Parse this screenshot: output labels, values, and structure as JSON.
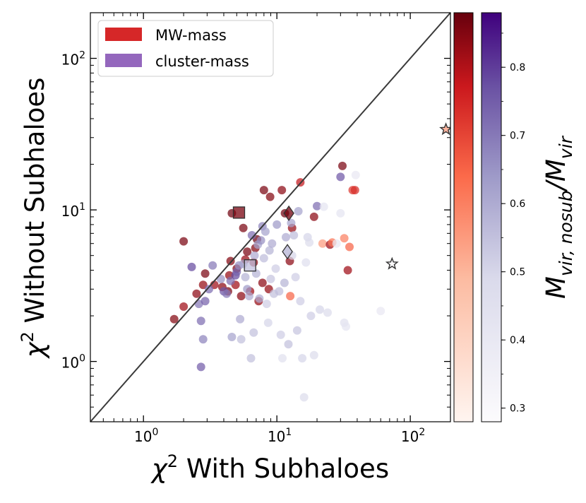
{
  "chart_data": {
    "type": "scatter",
    "title": "",
    "xlabel_base": "χ",
    "xlabel_sup": "2",
    "xlabel_rest": " With Subhaloes",
    "ylabel_base": "χ",
    "ylabel_sup": "2",
    "ylabel_rest": " Without Subhaloes",
    "xscale": "log",
    "yscale": "log",
    "xlim": [
      0.4,
      200
    ],
    "ylim": [
      0.4,
      200
    ],
    "x_ticks": [
      {
        "value": 1,
        "base": "10",
        "exp": "0"
      },
      {
        "value": 10,
        "base": "10",
        "exp": "1"
      },
      {
        "value": 100,
        "base": "10",
        "exp": "2"
      }
    ],
    "y_ticks": [
      {
        "value": 1,
        "base": "10",
        "exp": "0"
      },
      {
        "value": 10,
        "base": "10",
        "exp": "1"
      },
      {
        "value": 100,
        "base": "10",
        "exp": "2"
      }
    ],
    "one_to_one_line": true,
    "legend": {
      "position": "top-left",
      "entries": [
        {
          "label": "MW-mass",
          "color": "#d62728"
        },
        {
          "label": "cluster-mass",
          "color": "#9467bd"
        }
      ]
    },
    "colorbar": {
      "label_base": "M",
      "label_sub1": "vir, nosub",
      "label_slash": "/",
      "label_sub2": "vir",
      "range": [
        0.28,
        0.88
      ],
      "ticks": [
        "0.3",
        "0.4",
        "0.5",
        "0.6",
        "0.7",
        "0.8"
      ],
      "cmaps": [
        "Reds",
        "Purples"
      ]
    },
    "series": [
      {
        "name": "MW-mass",
        "color": "#8b2a33",
        "points": [
          {
            "x": 1.7,
            "y": 1.9,
            "c": 0.85
          },
          {
            "x": 2.0,
            "y": 2.3,
            "c": 0.82
          },
          {
            "x": 2.0,
            "y": 6.2,
            "c": 0.86
          },
          {
            "x": 2.5,
            "y": 2.8,
            "c": 0.84
          },
          {
            "x": 2.8,
            "y": 3.2,
            "c": 0.83
          },
          {
            "x": 2.9,
            "y": 3.8,
            "c": 0.86
          },
          {
            "x": 3.4,
            "y": 3.2,
            "c": 0.82
          },
          {
            "x": 3.9,
            "y": 3.1,
            "c": 0.84
          },
          {
            "x": 4.3,
            "y": 2.9,
            "c": 0.86
          },
          {
            "x": 4.4,
            "y": 3.7,
            "c": 0.83
          },
          {
            "x": 4.5,
            "y": 4.6,
            "c": 0.85
          },
          {
            "x": 4.6,
            "y": 9.5,
            "c": 0.87
          },
          {
            "x": 4.9,
            "y": 3.2,
            "c": 0.82
          },
          {
            "x": 5.0,
            "y": 4.1,
            "c": 0.85
          },
          {
            "x": 5.4,
            "y": 2.7,
            "c": 0.84
          },
          {
            "x": 5.6,
            "y": 7.6,
            "c": 0.86
          },
          {
            "x": 5.8,
            "y": 4.7,
            "c": 0.83
          },
          {
            "x": 6.0,
            "y": 5.3,
            "c": 0.86
          },
          {
            "x": 6.3,
            "y": 2.9,
            "c": 0.82
          },
          {
            "x": 6.7,
            "y": 4.5,
            "c": 0.84
          },
          {
            "x": 6.9,
            "y": 5.6,
            "c": 0.85
          },
          {
            "x": 7.1,
            "y": 6.4,
            "c": 0.87
          },
          {
            "x": 7.3,
            "y": 2.5,
            "c": 0.83
          },
          {
            "x": 7.8,
            "y": 3.3,
            "c": 0.84
          },
          {
            "x": 8.0,
            "y": 13.5,
            "c": 0.86
          },
          {
            "x": 8.7,
            "y": 3.0,
            "c": 0.83
          },
          {
            "x": 8.9,
            "y": 12.2,
            "c": 0.85
          },
          {
            "x": 10.9,
            "y": 13.5,
            "c": 0.84
          },
          {
            "x": 11.5,
            "y": 9.5,
            "c": 0.87
          },
          {
            "x": 12.5,
            "y": 4.6,
            "c": 0.84
          },
          {
            "x": 13.0,
            "y": 7.6,
            "c": 0.83
          },
          {
            "x": 15.0,
            "y": 15.2,
            "c": 0.78
          },
          {
            "x": 19.0,
            "y": 9.0,
            "c": 0.84
          },
          {
            "x": 22.0,
            "y": 6.0,
            "c": 0.55
          },
          {
            "x": 25.0,
            "y": 5.9,
            "c": 0.82
          },
          {
            "x": 26.0,
            "y": 6.1,
            "c": 0.62
          },
          {
            "x": 31.0,
            "y": 19.5,
            "c": 0.86
          },
          {
            "x": 32.0,
            "y": 6.5,
            "c": 0.6
          },
          {
            "x": 34.0,
            "y": 4.0,
            "c": 0.82
          },
          {
            "x": 35.0,
            "y": 5.7,
            "c": 0.65
          },
          {
            "x": 37.0,
            "y": 13.5,
            "c": 0.72
          },
          {
            "x": 38.5,
            "y": 13.5,
            "c": 0.74
          },
          {
            "x": 12.6,
            "y": 2.7,
            "c": 0.65
          }
        ]
      },
      {
        "name": "cluster-mass",
        "color": "#6a46a5",
        "points": [
          {
            "x": 2.3,
            "y": 4.2,
            "c": 0.78
          },
          {
            "x": 2.6,
            "y": 2.4,
            "c": 0.7
          },
          {
            "x": 2.7,
            "y": 1.85,
            "c": 0.72
          },
          {
            "x": 2.7,
            "y": 0.92,
            "c": 0.75
          },
          {
            "x": 2.8,
            "y": 1.4,
            "c": 0.68
          },
          {
            "x": 2.9,
            "y": 2.5,
            "c": 0.74
          },
          {
            "x": 3.1,
            "y": 3.0,
            "c": 0.72
          },
          {
            "x": 3.3,
            "y": 4.3,
            "c": 0.7
          },
          {
            "x": 3.8,
            "y": 3.5,
            "c": 0.65
          },
          {
            "x": 4.0,
            "y": 2.9,
            "c": 0.76
          },
          {
            "x": 4.2,
            "y": 2.8,
            "c": 0.7
          },
          {
            "x": 4.5,
            "y": 3.4,
            "c": 0.72
          },
          {
            "x": 4.6,
            "y": 1.45,
            "c": 0.62
          },
          {
            "x": 4.9,
            "y": 3.7,
            "c": 0.78
          },
          {
            "x": 5.0,
            "y": 3.9,
            "c": 0.74
          },
          {
            "x": 5.2,
            "y": 4.3,
            "c": 0.66
          },
          {
            "x": 5.3,
            "y": 1.9,
            "c": 0.6
          },
          {
            "x": 5.4,
            "y": 1.4,
            "c": 0.55
          },
          {
            "x": 5.6,
            "y": 4.4,
            "c": 0.62
          },
          {
            "x": 5.8,
            "y": 3.6,
            "c": 0.58
          },
          {
            "x": 6.0,
            "y": 3.0,
            "c": 0.64
          },
          {
            "x": 6.2,
            "y": 2.7,
            "c": 0.6
          },
          {
            "x": 6.4,
            "y": 1.05,
            "c": 0.55
          },
          {
            "x": 6.5,
            "y": 6.8,
            "c": 0.72
          },
          {
            "x": 6.7,
            "y": 1.55,
            "c": 0.55
          },
          {
            "x": 6.8,
            "y": 5.0,
            "c": 0.6
          },
          {
            "x": 7.0,
            "y": 3.8,
            "c": 0.58
          },
          {
            "x": 7.2,
            "y": 5.9,
            "c": 0.62
          },
          {
            "x": 7.4,
            "y": 2.6,
            "c": 0.6
          },
          {
            "x": 7.6,
            "y": 6.3,
            "c": 0.66
          },
          {
            "x": 7.8,
            "y": 7.8,
            "c": 0.68
          },
          {
            "x": 8.0,
            "y": 4.8,
            "c": 0.56
          },
          {
            "x": 8.2,
            "y": 7.2,
            "c": 0.62
          },
          {
            "x": 8.4,
            "y": 2.4,
            "c": 0.52
          },
          {
            "x": 8.6,
            "y": 1.8,
            "c": 0.5
          },
          {
            "x": 8.8,
            "y": 5.4,
            "c": 0.58
          },
          {
            "x": 9.0,
            "y": 3.5,
            "c": 0.54
          },
          {
            "x": 9.2,
            "y": 6.0,
            "c": 0.6
          },
          {
            "x": 9.5,
            "y": 2.8,
            "c": 0.55
          },
          {
            "x": 9.8,
            "y": 4.1,
            "c": 0.52
          },
          {
            "x": 10.0,
            "y": 8.0,
            "c": 0.64
          },
          {
            "x": 10.4,
            "y": 2.9,
            "c": 0.56
          },
          {
            "x": 10.7,
            "y": 1.5,
            "c": 0.52
          },
          {
            "x": 11.0,
            "y": 1.05,
            "c": 0.45
          },
          {
            "x": 11.4,
            "y": 3.3,
            "c": 0.58
          },
          {
            "x": 11.7,
            "y": 6.6,
            "c": 0.6
          },
          {
            "x": 12.2,
            "y": 1.3,
            "c": 0.55
          },
          {
            "x": 12.8,
            "y": 8.2,
            "c": 0.62
          },
          {
            "x": 13.0,
            "y": 5.0,
            "c": 0.5
          },
          {
            "x": 13.4,
            "y": 6.8,
            "c": 0.56
          },
          {
            "x": 13.8,
            "y": 3.6,
            "c": 0.52
          },
          {
            "x": 14.2,
            "y": 1.6,
            "c": 0.54
          },
          {
            "x": 15.0,
            "y": 2.5,
            "c": 0.52
          },
          {
            "x": 15.5,
            "y": 1.05,
            "c": 0.5
          },
          {
            "x": 16.0,
            "y": 0.58,
            "c": 0.48
          },
          {
            "x": 16.5,
            "y": 4.5,
            "c": 0.46
          },
          {
            "x": 17.0,
            "y": 6.6,
            "c": 0.5
          },
          {
            "x": 17.5,
            "y": 6.1,
            "c": 0.48
          },
          {
            "x": 18.0,
            "y": 2.0,
            "c": 0.52
          },
          {
            "x": 19.0,
            "y": 1.1,
            "c": 0.48
          },
          {
            "x": 20.0,
            "y": 10.6,
            "c": 0.72
          },
          {
            "x": 21.0,
            "y": 2.2,
            "c": 0.5
          },
          {
            "x": 22.5,
            "y": 10.5,
            "c": 0.42
          },
          {
            "x": 24.0,
            "y": 2.1,
            "c": 0.48
          },
          {
            "x": 28.0,
            "y": 6.0,
            "c": 0.4
          },
          {
            "x": 30.0,
            "y": 9.5,
            "c": 0.42
          },
          {
            "x": 32.0,
            "y": 1.8,
            "c": 0.45
          },
          {
            "x": 39.0,
            "y": 17.0,
            "c": 0.4
          },
          {
            "x": 60.0,
            "y": 2.15,
            "c": 0.4
          },
          {
            "x": 14.5,
            "y": 9.8,
            "c": 0.62
          },
          {
            "x": 30.0,
            "y": 16.5,
            "c": 0.76
          },
          {
            "x": 33.0,
            "y": 1.7,
            "c": 0.42
          }
        ]
      }
    ],
    "highlighted": [
      {
        "shape": "square",
        "group": "MW-mass",
        "x": 5.2,
        "y": 9.6,
        "c": 0.86
      },
      {
        "shape": "diamond",
        "group": "MW-mass",
        "x": 12.3,
        "y": 9.5,
        "c": 0.87
      },
      {
        "shape": "square",
        "group": "cluster-mass",
        "x": 6.3,
        "y": 4.3,
        "c": 0.55
      },
      {
        "shape": "diamond",
        "group": "cluster-mass",
        "x": 12.0,
        "y": 5.3,
        "c": 0.58
      },
      {
        "shape": "star",
        "group": "MW-mass",
        "x": 185,
        "y": 34,
        "c": 0.55
      },
      {
        "shape": "star",
        "group": "cluster-mass",
        "x": 73,
        "y": 4.4,
        "c": 0.3
      }
    ]
  }
}
